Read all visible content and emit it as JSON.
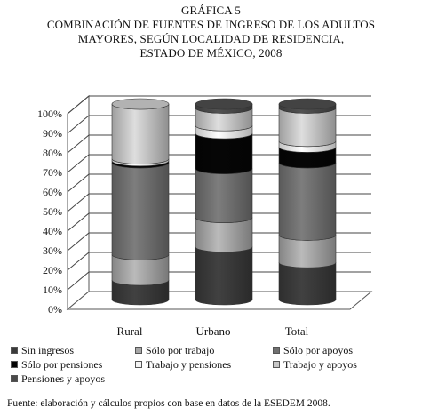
{
  "titles": {
    "label": "GRÁFICA 5",
    "line1": "COMBINACIÓN DE FUENTES DE INGRESO DE LOS ADULTOS",
    "line2": "MAYORES, SEGÚN LOCALIDAD DE RESIDENCIA,",
    "line3": "ESTADO DE MÉXICO, 2008"
  },
  "source": "Fuente: elaboración y cálculos propios con base en datos de la ESEDEM 2008.",
  "colors": {
    "Sin ingresos": "#3a3a3a",
    "Sólo por trabajo": "#a6a6a6",
    "Sólo por apoyos": "#707070",
    "Sólo por pensiones": "#050505",
    "Trabajo y pensiones": "#f4f4f4",
    "Trabajo y apoyos": "#c6c6c6",
    "Pensiones y apoyos": "#4a4a4a"
  },
  "chart_data": {
    "type": "bar",
    "stacked": true,
    "three_d": true,
    "categories": [
      "Rural",
      "Urbano",
      "Total"
    ],
    "yticks": [
      "0%",
      "10%",
      "20%",
      "30%",
      "40%",
      "50%",
      "60%",
      "70%",
      "80%",
      "90%",
      "100%"
    ],
    "ylim": [
      0,
      100
    ],
    "legend_position": "bottom",
    "series": [
      {
        "name": "Sin ingresos",
        "values": [
          10,
          27,
          19
        ]
      },
      {
        "name": "Sólo por trabajo",
        "values": [
          13,
          15,
          14
        ]
      },
      {
        "name": "Sólo por apoyos",
        "values": [
          47,
          25,
          37
        ]
      },
      {
        "name": "Sólo por pensiones",
        "values": [
          1,
          18,
          8
        ]
      },
      {
        "name": "Trabajo y pensiones",
        "values": [
          1,
          4,
          3
        ]
      },
      {
        "name": "Trabajo y apoyos",
        "values": [
          28,
          9,
          17
        ]
      },
      {
        "name": "Pensiones y apoyos",
        "values": [
          0,
          2,
          2
        ]
      }
    ]
  }
}
